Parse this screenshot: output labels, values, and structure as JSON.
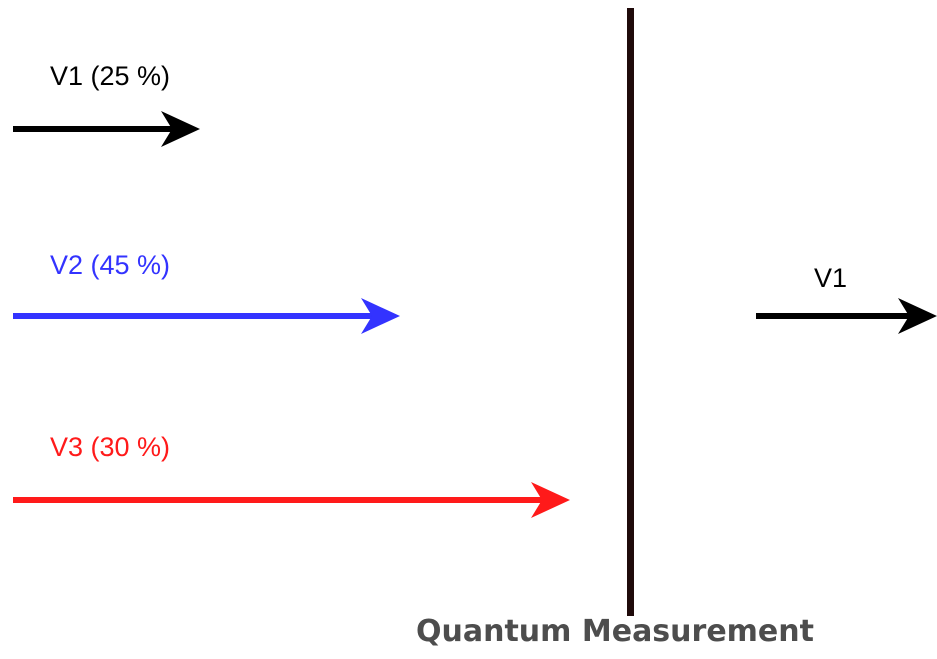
{
  "incoming_vectors": [
    {
      "label": "V1 (25 %)",
      "color": "#000000",
      "probability_percent": 25
    },
    {
      "label": "V2 (45 %)",
      "color": "#3333ff",
      "probability_percent": 45
    },
    {
      "label": "V3 (30 %)",
      "color": "#ff1a1a",
      "probability_percent": 30
    }
  ],
  "measurement": {
    "caption": "Quantum Measurement",
    "barrier_color": "#1f0a0a"
  },
  "outcome": {
    "label": "V1",
    "color": "#000000"
  }
}
